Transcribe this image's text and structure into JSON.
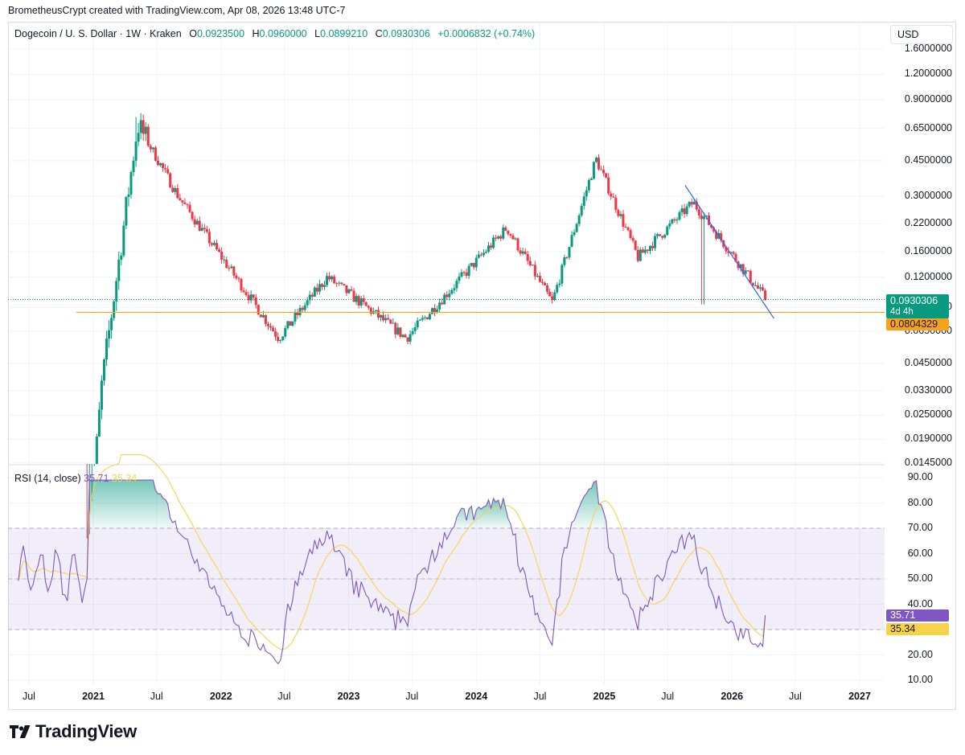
{
  "attribution": "BrometheusCrypt created with TradingView.com, Apr 08, 2026 13:48 UTC-7",
  "legend": {
    "symbol": "Dogecoin / U. S. Dollar · 1W · Kraken",
    "o_label": "O",
    "o": "0.0923500",
    "h_label": "H",
    "h": "0.0960000",
    "l_label": "L",
    "l": "0.0899210",
    "c_label": "C",
    "c": "0.0930306",
    "change": "+0.0006832 (+0.74%)"
  },
  "currency_button": "USD",
  "rsi_legend": {
    "label": "RSI (14, close)",
    "rsi": "35.71",
    "ma": "35.34"
  },
  "price_tags": {
    "last": "0.0930306",
    "countdown": "4d 4h",
    "support": "0.0804329"
  },
  "rsi_tags": {
    "rsi": "35.71",
    "ma": "35.34"
  },
  "brand": "TradingView",
  "colors": {
    "up": "#089981",
    "down": "#f23645",
    "rsi": "#7e57c2",
    "rsi_ma": "#f7d34a",
    "support": "#f7a21b",
    "trendline": "#2962ff",
    "band": "#7e57c2"
  },
  "chart_data": [
    {
      "type": "candlestick",
      "scale": "log",
      "y_ticks": [
        "1.6000000",
        "1.2000000",
        "0.9000000",
        "0.6500000",
        "0.4500000",
        "0.3000000",
        "0.2200000",
        "0.1600000",
        "0.1200000",
        "0.0850000",
        "0.0650000",
        "0.0450000",
        "0.0330000",
        "0.0250000",
        "0.0190000",
        "0.0145000"
      ],
      "x_ticks": [
        "Jul",
        "2021",
        "Jul",
        "2022",
        "Jul",
        "2023",
        "Jul",
        "2024",
        "Jul",
        "2025",
        "Jul",
        "2026",
        "Jul",
        "2027"
      ],
      "key_points": [
        {
          "date": "2021-01-25",
          "close": 0.035
        },
        {
          "date": "2021-05-08",
          "close": 0.68
        },
        {
          "date": "2021-09-01",
          "close": 0.3
        },
        {
          "date": "2022-06-15",
          "close": 0.06
        },
        {
          "date": "2022-11-01",
          "close": 0.12
        },
        {
          "date": "2023-06-15",
          "close": 0.06
        },
        {
          "date": "2024-03-28",
          "close": 0.21
        },
        {
          "date": "2024-08-05",
          "close": 0.09
        },
        {
          "date": "2024-12-08",
          "close": 0.46
        },
        {
          "date": "2025-04-07",
          "close": 0.15
        },
        {
          "date": "2025-09-12",
          "close": 0.28
        },
        {
          "date": "2026-04-08",
          "close": 0.0930306
        }
      ],
      "support_level": 0.0804329,
      "trendline": [
        {
          "date": "2025-08-20",
          "price": 0.34
        },
        {
          "date": "2026-05-01",
          "price": 0.075
        }
      ]
    },
    {
      "type": "line",
      "title": "RSI (14, close)",
      "ylim": [
        10,
        90
      ],
      "y_ticks": [
        "90.00",
        "80.00",
        "70.00",
        "60.00",
        "50.00",
        "40.00",
        "30.00",
        "20.00",
        "10.00"
      ],
      "bands": {
        "upper": 70,
        "middle": 50,
        "lower": 30
      },
      "series": [
        {
          "name": "RSI",
          "last": 35.71
        },
        {
          "name": "MA",
          "last": 35.34
        }
      ]
    }
  ]
}
